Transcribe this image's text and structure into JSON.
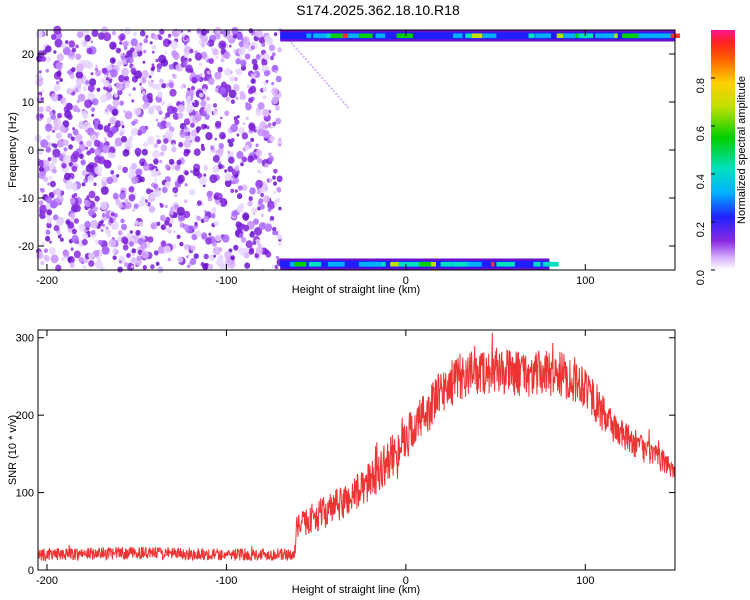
{
  "title": "S174.2025.362.18.10.R18",
  "colors": {
    "snr_line": "#ee3333",
    "axis": "#000000",
    "scatter_base": "#8a2be2"
  },
  "chart_data": [
    {
      "type": "heatmap",
      "xlabel": "Height of straight line (km)",
      "ylabel": "Frequency (Hz)",
      "xlim": [
        -205,
        150
      ],
      "ylim": [
        -25,
        25
      ],
      "xticks": [
        -200,
        -100,
        0,
        100
      ],
      "yticks": [
        -20,
        -10,
        0,
        10,
        20
      ],
      "colorbar": {
        "label": "Normalized spectral amplitude",
        "range": [
          0.0,
          1.0
        ],
        "ticks": [
          0.0,
          0.2,
          0.4,
          0.6,
          0.8
        ],
        "tick_labels": [
          "0.0",
          "0.2",
          "0.4",
          "0.6",
          "0.8"
        ]
      },
      "regions": [
        {
          "x_range": [
            -205,
            -70
          ],
          "f_range": [
            -25,
            25
          ],
          "description": "dense purple scatter, amplitude ~0.05-0.25"
        },
        {
          "x_range": [
            -70,
            150
          ],
          "f_range": [
            22.5,
            25
          ],
          "description": "high amplitude edge band"
        },
        {
          "x_range": [
            -70,
            80
          ],
          "f_range": [
            -25,
            -22.5
          ],
          "description": "high amplitude edge band"
        }
      ]
    },
    {
      "type": "line",
      "xlabel": "Height of straight line (km)",
      "ylabel": "SNR (10 * v/v)",
      "xlim": [
        -205,
        150
      ],
      "ylim": [
        0,
        310
      ],
      "xticks": [
        -200,
        -100,
        0,
        100
      ],
      "yticks": [
        0,
        100,
        200,
        300
      ],
      "series": [
        {
          "name": "SNR",
          "x": [
            -205,
            -150,
            -100,
            -80,
            -62,
            -61,
            -50,
            -40,
            -30,
            -20,
            -10,
            0,
            10,
            20,
            30,
            40,
            50,
            60,
            70,
            80,
            90,
            100,
            110,
            120,
            130,
            140,
            150
          ],
          "values": [
            20,
            22,
            20,
            20,
            20,
            55,
            70,
            80,
            95,
            115,
            140,
            170,
            200,
            230,
            250,
            255,
            258,
            255,
            252,
            255,
            250,
            240,
            200,
            175,
            160,
            145,
            130
          ],
          "noise_amplitude": [
            8,
            8,
            8,
            8,
            8,
            15,
            20,
            22,
            25,
            25,
            28,
            28,
            30,
            30,
            30,
            30,
            30,
            30,
            30,
            30,
            30,
            30,
            25,
            20,
            18,
            15,
            15
          ]
        }
      ]
    }
  ]
}
